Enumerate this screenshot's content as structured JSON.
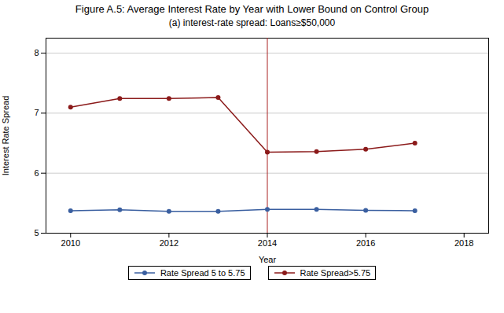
{
  "chart_data": {
    "type": "line",
    "title": "Figure A.5:  Average Interest Rate by Year with Lower Bound on Control Group",
    "subtitle": "(a) interest-rate spread: Loans≥$50,000",
    "xlabel": "Year",
    "ylabel": "Interest Rate Spread",
    "x": [
      2010,
      2011,
      2012,
      2013,
      2014,
      2015,
      2016,
      2017
    ],
    "series": [
      {
        "name": "Rate Spread 5 to 5.75",
        "color": "#3A5FA0",
        "marker": "circle",
        "values": [
          5.375,
          5.39,
          5.365,
          5.365,
          5.395,
          5.395,
          5.38,
          5.375
        ]
      },
      {
        "name": "Rate Spread>5.75",
        "color": "#8B1A1A",
        "marker": "circle",
        "values": [
          7.1,
          7.245,
          7.245,
          7.26,
          6.35,
          6.36,
          6.4,
          6.5
        ]
      }
    ],
    "xlim": [
      2009.5,
      2018.5
    ],
    "xticks": [
      2010,
      2012,
      2014,
      2016,
      2018
    ],
    "ylim": [
      5.0,
      8.25
    ],
    "yticks": [
      5,
      6,
      7,
      8
    ],
    "vline": {
      "x": 2014,
      "color": "#AA2222"
    },
    "grid": "y",
    "legend": "bottom"
  }
}
